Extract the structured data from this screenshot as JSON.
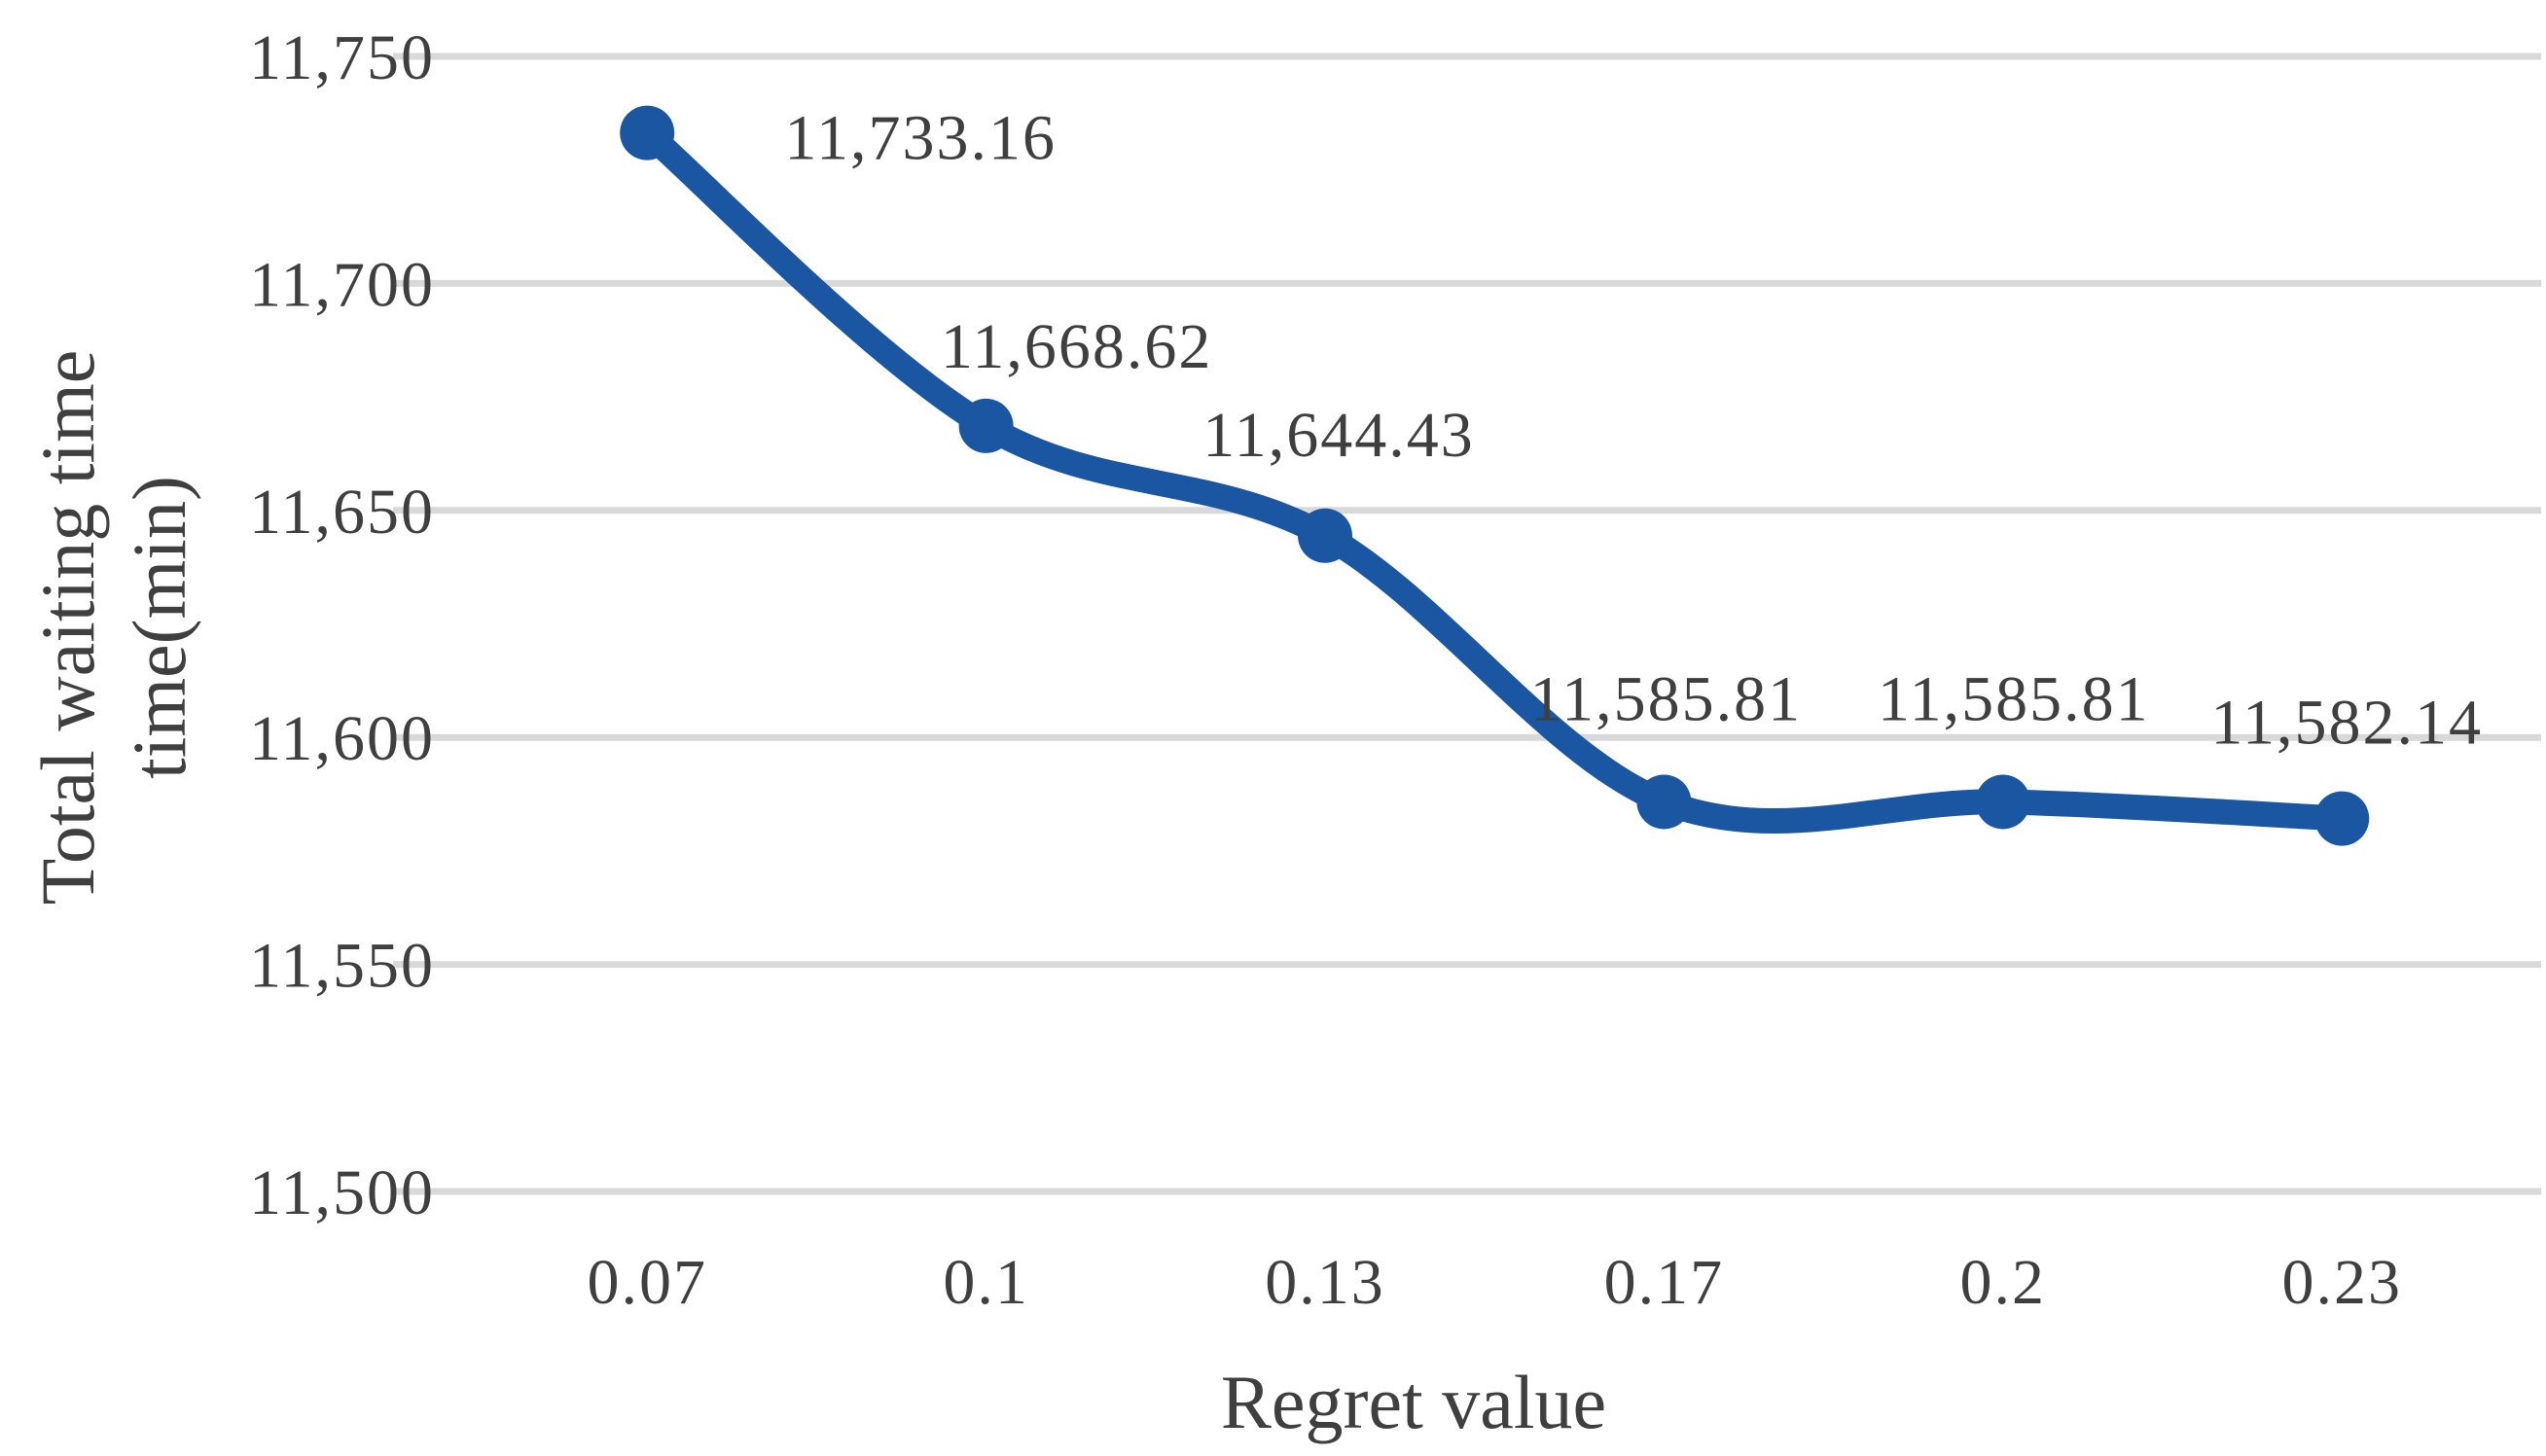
{
  "page": {
    "background": "#FFFFFF"
  },
  "chart_data": {
    "type": "line",
    "title": "",
    "xlabel": "Regret value",
    "ylabel": "Total waiting time time(min)",
    "ylabel_lines": [
      "Total waiting time",
      "time(min)"
    ],
    "categories": [
      "0.07",
      "0.1",
      "0.13",
      "0.17",
      "0.2",
      "0.23"
    ],
    "series": [
      {
        "values": [
          11733.16,
          11668.62,
          11644.43,
          11585.81,
          11585.81,
          11582.14
        ],
        "point_labels": [
          "11,733.16",
          "11,668.62",
          "11,644.43",
          "11,585.81",
          "11,585.81",
          "11,582.14"
        ]
      }
    ],
    "y_ticks": [
      "11,750",
      "11,700",
      "11,650",
      "11,600",
      "11,550",
      "11,500"
    ],
    "ylim": [
      11500,
      11750
    ],
    "y_tick_step": 50,
    "grid": true,
    "legend": "none",
    "line_smooth": true,
    "colors": {
      "line": "#1A56A1",
      "marker": "#1A56A1",
      "grid": "#D9D9D9",
      "text": "#3F3F3F"
    }
  }
}
